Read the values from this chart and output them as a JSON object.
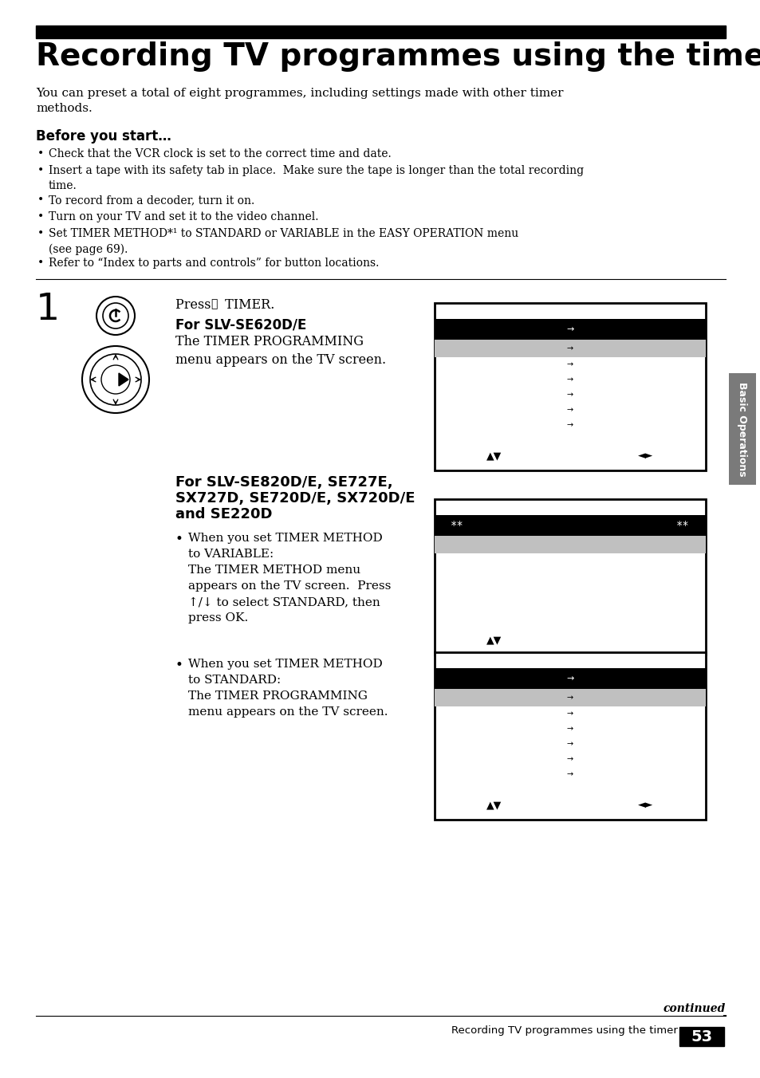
{
  "title": "Recording TV programmes using the timer",
  "bg_color": "#ffffff",
  "page_number": "53",
  "page_footer_text": "Recording TV programmes using the timer",
  "intro_text": "You can preset a total of eight programmes, including settings made with other timer\nmethods.",
  "before_start_heading": "Before you start…",
  "bullet_points": [
    "Check that the VCR clock is set to the correct time and date.",
    "Insert a tape with its safety tab in place.  Make sure the tape is longer than the total recording\ntime.",
    "To record from a decoder, turn it on.",
    "Turn on your TV and set it to the video channel.",
    "Set TIMER METHOD*¹ to STANDARD or VARIABLE in the EASY OPERATION menu\n(see page 69).",
    "Refer to “Index to parts and controls” for button locations."
  ],
  "step_number": "1",
  "for_slv_heading": "For SLV-SE620D/E",
  "for_slv_text": "The TIMER PROGRAMMING\nmenu appears on the TV screen.",
  "for_slv2_line1": "For SLV-SE820D/E, SE727E,",
  "for_slv2_line2": "SX727D, SE720D/E, SX720D/E",
  "for_slv2_line3": "and SE220D",
  "bullet2a_text": "When you set TIMER METHOD\nto VARIABLE:\nThe TIMER METHOD menu\nappears on the TV screen.  Press\n↑/↓ to select STANDARD, then\npress OK.",
  "bullet2b_text": "When you set TIMER METHOD\nto STANDARD:\nThe TIMER PROGRAMMING\nmenu appears on the TV screen.",
  "continued_text": "continued",
  "sidebar_text": "Basic Operations",
  "screen1_rows": [
    "→",
    "→",
    "→",
    "→",
    "→",
    "→",
    "→"
  ],
  "screen1_nav_left": "▲▼",
  "screen1_nav_right": "◄►",
  "screen2_header_left": "**",
  "screen2_header_right": "**",
  "screen2_nav": "▲▼",
  "screen3_rows": [
    "→",
    "→",
    "→",
    "→",
    "→",
    "→",
    "→"
  ],
  "screen3_nav_left": "▲▼",
  "screen3_nav_right": "◄►"
}
